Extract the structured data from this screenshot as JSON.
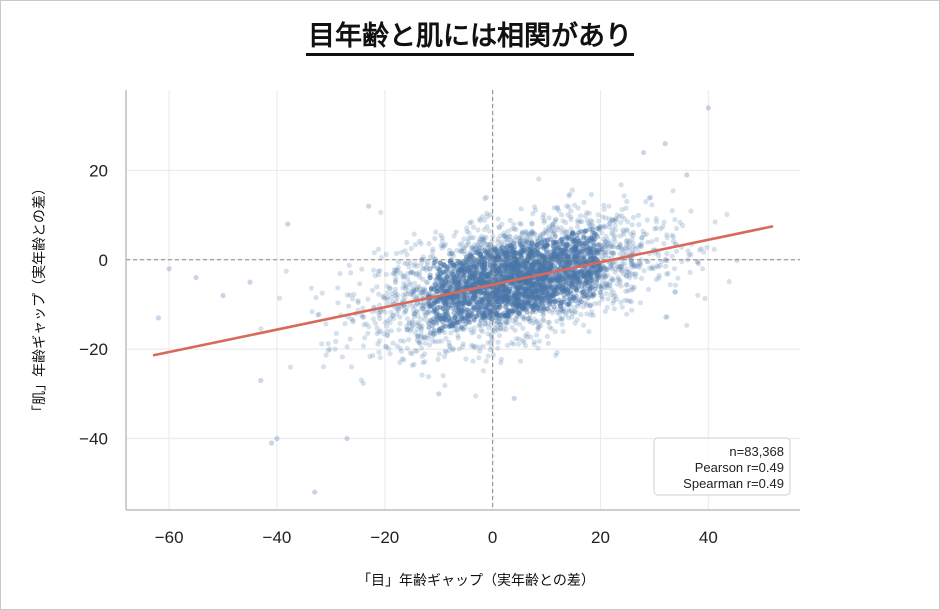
{
  "chart_data": {
    "type": "scatter",
    "title": "目年齢と肌には相関があり",
    "xlabel": "「目」年齢ギャップ（実年齢との差）",
    "ylabel": "「肌」年齢ギャップ（実年齢との差）",
    "xlim": [
      -68,
      57
    ],
    "ylim": [
      -56,
      38
    ],
    "xticks": [
      "−60",
      "−40",
      "−20",
      "0",
      "20",
      "40"
    ],
    "yticks": [
      "−40",
      "−20",
      "0",
      "20"
    ],
    "xtick_values": [
      -60,
      -40,
      -20,
      0,
      20,
      40
    ],
    "ytick_values": [
      -40,
      -20,
      0,
      20
    ],
    "reference_lines": {
      "x": 0,
      "y": 0,
      "style": "dashed"
    },
    "regression_line": {
      "x": [
        -63,
        52
      ],
      "y": [
        -21.4,
        7.5
      ],
      "color": "#d9695a"
    },
    "point_color": "#4a76a8",
    "grid": true,
    "legend_position": "bottom-right",
    "stats": {
      "n": "n=83,368",
      "pearson": "Pearson r=0.49",
      "spearman": "Spearman r=0.49"
    },
    "outliers": [
      [
        -62,
        -13
      ],
      [
        -60,
        -2
      ],
      [
        -55,
        -4
      ],
      [
        -50,
        -8
      ],
      [
        -45,
        -5
      ],
      [
        -43,
        -27
      ],
      [
        -41,
        -41
      ],
      [
        -40,
        -40
      ],
      [
        -33,
        -52
      ],
      [
        -27,
        -40
      ],
      [
        -38,
        8
      ],
      [
        -23,
        12
      ],
      [
        40,
        34
      ],
      [
        32,
        26
      ],
      [
        28,
        24
      ],
      [
        36,
        19
      ],
      [
        -10,
        -30
      ],
      [
        4,
        -31
      ]
    ]
  }
}
